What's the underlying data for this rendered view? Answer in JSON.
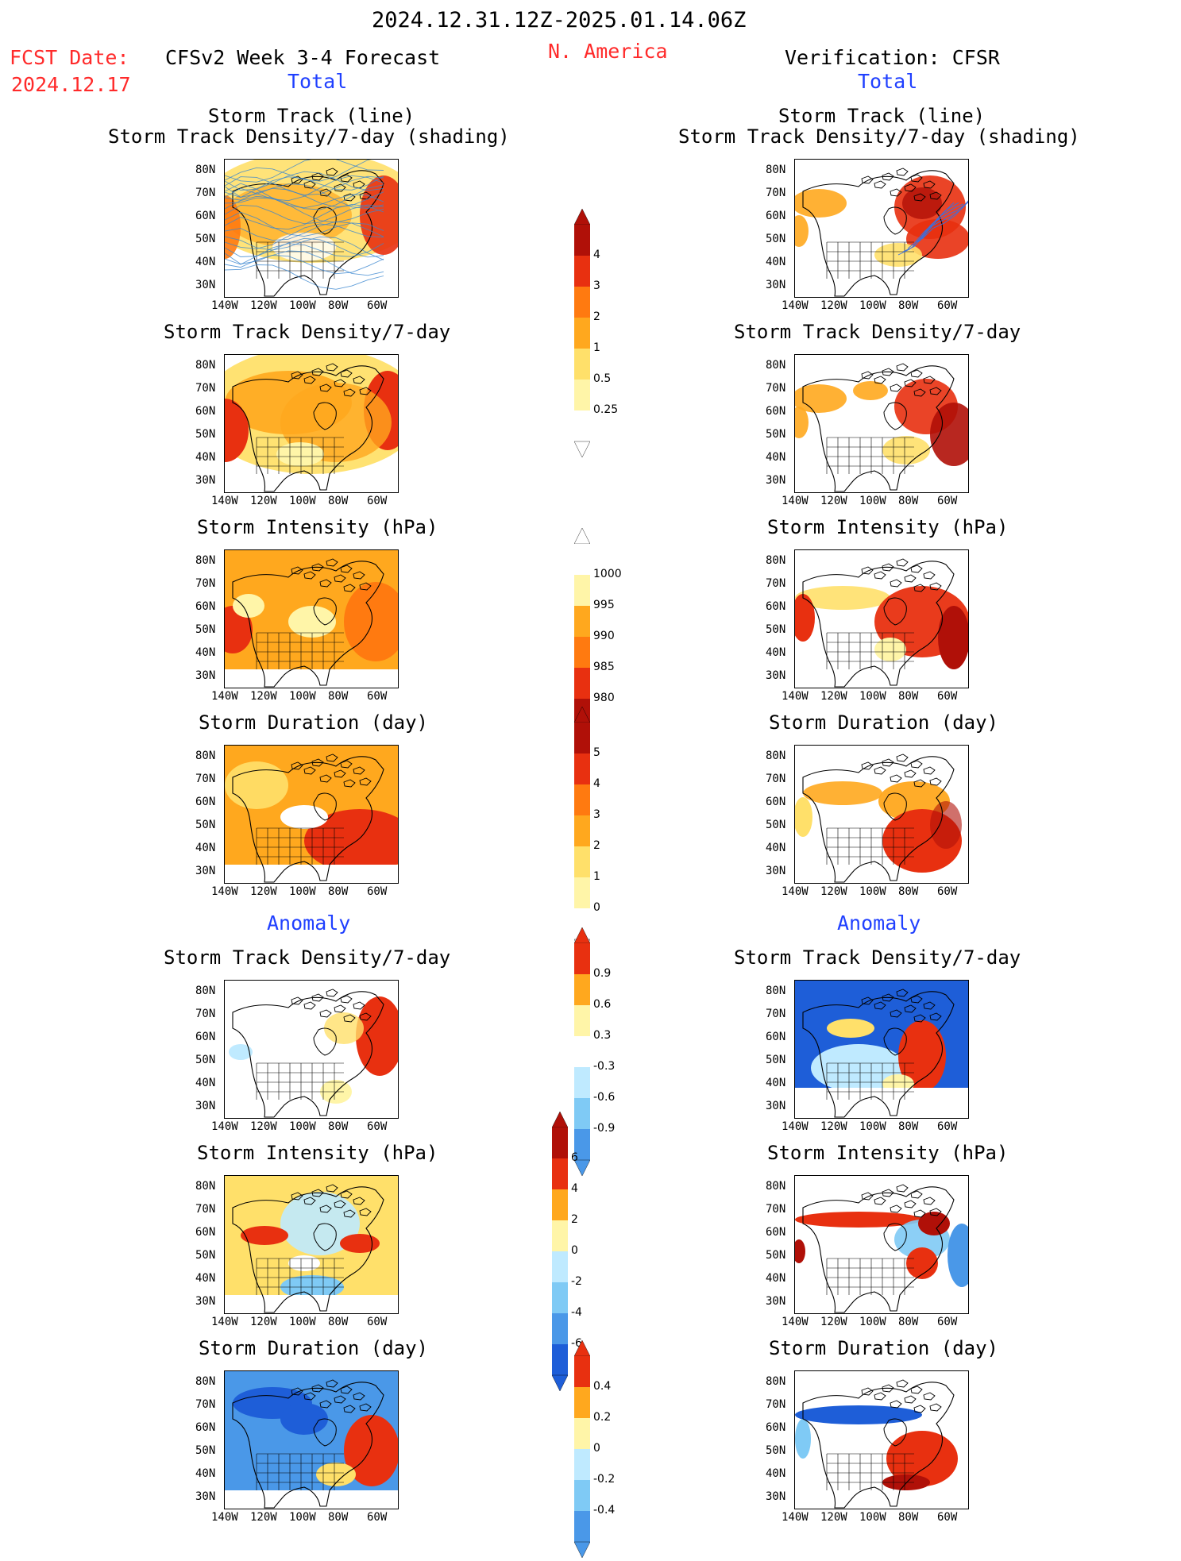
{
  "header": {
    "period": "2024.12.31.12Z-2025.01.14.06Z",
    "fcst_date_label": "FCST Date:",
    "fcst_date": "2024.12.17",
    "left_title": "CFSv2 Week 3-4 Forecast",
    "region": "N. America",
    "right_title": "Verification: CFSR",
    "total_left": "Total",
    "total_right": "Total",
    "anomaly_left": "Anomaly",
    "anomaly_right": "Anomaly"
  },
  "panel_titles": {
    "track_line": "Storm Track (line)",
    "track_shading": "Storm Track Density/7-day (shading)",
    "density": "Storm Track Density/7-day",
    "intensity": "Storm Intensity (hPa)",
    "duration": "Storm Duration (day)"
  },
  "axes": {
    "lat_ticks": [
      "80N",
      "70N",
      "60N",
      "50N",
      "40N",
      "30N"
    ],
    "lon_ticks": [
      "140W",
      "120W",
      "100W",
      "80W",
      "60W"
    ]
  },
  "colorbars": {
    "total_density": [
      "4",
      "3",
      "2",
      "1",
      "0.5",
      "0.25"
    ],
    "total_intensity": [
      "1000",
      "995",
      "990",
      "985",
      "980"
    ],
    "total_duration": [
      "5",
      "4",
      "3",
      "2",
      "1",
      "0"
    ],
    "anom_density": [
      "0.9",
      "0.6",
      "0.3",
      "-0.3",
      "-0.6",
      "-0.9"
    ],
    "anom_intensity": [
      "6",
      "4",
      "2",
      "0",
      "-2",
      "-4",
      "-6"
    ],
    "anom_duration": [
      "0.4",
      "0.2",
      "0",
      "-0.2",
      "-0.4"
    ]
  },
  "palette": {
    "warm": [
      "#fff5a8",
      "#ffe06a",
      "#ffa81e",
      "#ff7a10",
      "#e83010",
      "#b01008"
    ],
    "cool": [
      "#bfeaff",
      "#7fcaf5",
      "#4a98e8",
      "#1e5ed8"
    ]
  }
}
